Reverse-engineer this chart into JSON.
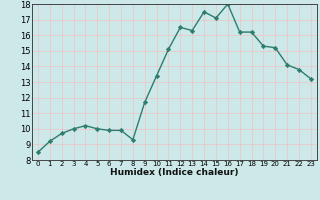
{
  "x": [
    0,
    1,
    2,
    3,
    4,
    5,
    6,
    7,
    8,
    9,
    10,
    11,
    12,
    13,
    14,
    15,
    16,
    17,
    18,
    19,
    20,
    21,
    22,
    23
  ],
  "y": [
    8.5,
    9.2,
    9.7,
    10.0,
    10.2,
    10.0,
    9.9,
    9.9,
    9.3,
    11.7,
    13.4,
    15.1,
    16.5,
    16.3,
    17.5,
    17.1,
    18.0,
    16.2,
    16.2,
    15.3,
    15.2,
    14.1,
    13.8,
    13.2
  ],
  "xlim": [
    -0.5,
    23.5
  ],
  "ylim": [
    8,
    18
  ],
  "yticks": [
    8,
    9,
    10,
    11,
    12,
    13,
    14,
    15,
    16,
    17,
    18
  ],
  "xticks": [
    0,
    1,
    2,
    3,
    4,
    5,
    6,
    7,
    8,
    9,
    10,
    11,
    12,
    13,
    14,
    15,
    16,
    17,
    18,
    19,
    20,
    21,
    22,
    23
  ],
  "xlabel": "Humidex (Indice chaleur)",
  "line_color": "#2e7d6e",
  "marker": "D",
  "marker_size": 2.2,
  "bg_color": "#cce8e8",
  "grid_color": "#e8c8c8"
}
